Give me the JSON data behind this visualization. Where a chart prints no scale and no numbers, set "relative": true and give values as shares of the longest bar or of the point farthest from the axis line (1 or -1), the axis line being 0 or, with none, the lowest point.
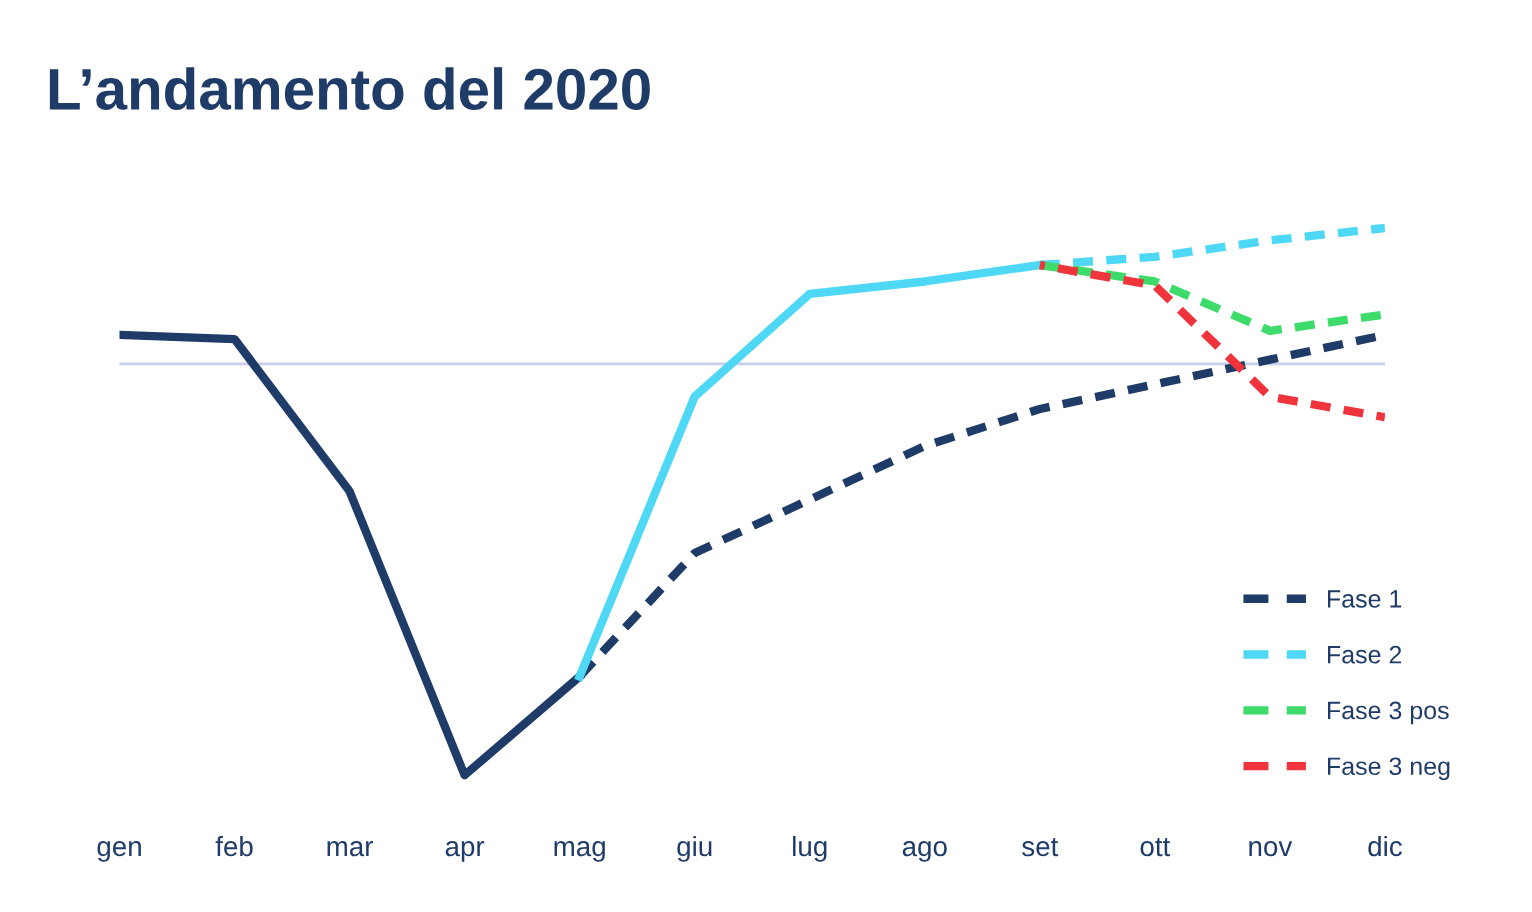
{
  "chart_data": {
    "type": "line",
    "title": "L’andamento del 2020",
    "relative": true,
    "tick_labels": "x",
    "grid": false,
    "legend": "bottom right",
    "categories": [
      "gen",
      "feb",
      "mar",
      "apr",
      "mag",
      "giu",
      "lug",
      "ago",
      "set",
      "ott",
      "nov",
      "dic"
    ],
    "ref_lines": [
      {
        "axis": "y",
        "value": 0,
        "label": null,
        "color": "#c8cdea"
      }
    ],
    "series": [
      {
        "color": "#1f3b68",
        "line_style": "solid",
        "values": [
          0.07,
          0.06,
          -0.31,
          -1,
          -0.76,
          null,
          null,
          null,
          null,
          null,
          null,
          null
        ]
      },
      {
        "name": "Fase 1",
        "color": "#1f3b68",
        "line_style": "dashed",
        "values": [
          null,
          null,
          null,
          null,
          -0.76,
          -0.46,
          -0.33,
          -0.2,
          -0.11,
          -0.05,
          0.01,
          0.07
        ]
      },
      {
        "name": "Fase 2",
        "color": "#4fd8f5",
        "line_style": "solid",
        "values": [
          null,
          null,
          null,
          null,
          -0.76,
          -0.08,
          0.17,
          0.2,
          0.24,
          null,
          null,
          null
        ]
      },
      {
        "color": "#4fd8f5",
        "line_style": "dashed",
        "values": [
          null,
          null,
          null,
          null,
          null,
          null,
          null,
          null,
          0.24,
          0.26,
          0.3,
          0.33
        ]
      },
      {
        "name": "Fase 3 pos",
        "color": "#3ddc6a",
        "line_style": "dashed",
        "values": [
          null,
          null,
          null,
          null,
          null,
          null,
          null,
          null,
          0.24,
          0.2,
          0.08,
          0.12
        ]
      },
      {
        "name": "Fase 3 neg",
        "color": "#f0343c",
        "line_style": "dashed",
        "values": [
          null,
          null,
          null,
          null,
          null,
          null,
          null,
          null,
          0.24,
          0.19,
          -0.08,
          -0.13
        ]
      }
    ]
  }
}
